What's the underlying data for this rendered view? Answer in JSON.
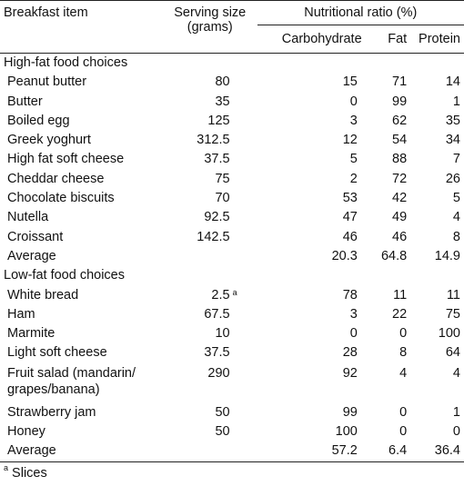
{
  "headers": {
    "item": "Breakfast item",
    "serving_line1": "Serving size",
    "serving_line2": "(grams)",
    "ratio": "Nutritional ratio (%)",
    "carb": "Carbohydrate",
    "fat": "Fat",
    "protein": "Protein"
  },
  "sections": {
    "high": "High-fat food choices",
    "low": "Low-fat food choices"
  },
  "high_rows": [
    {
      "item": "Peanut butter",
      "serving": "80",
      "carb": "15",
      "fat": "71",
      "protein": "14"
    },
    {
      "item": "Butter",
      "serving": "35",
      "carb": "0",
      "fat": "99",
      "protein": "1"
    },
    {
      "item": "Boiled egg",
      "serving": "125",
      "carb": "3",
      "fat": "62",
      "protein": "35"
    },
    {
      "item": "Greek yoghurt",
      "serving": "312.5",
      "carb": "12",
      "fat": "54",
      "protein": "34"
    },
    {
      "item": "High fat soft cheese",
      "serving": "37.5",
      "carb": "5",
      "fat": "88",
      "protein": "7"
    },
    {
      "item": "Cheddar cheese",
      "serving": "75",
      "carb": "2",
      "fat": "72",
      "protein": "26"
    },
    {
      "item": "Chocolate biscuits",
      "serving": "70",
      "carb": "53",
      "fat": "42",
      "protein": "5"
    },
    {
      "item": "Nutella",
      "serving": "92.5",
      "carb": "47",
      "fat": "49",
      "protein": "4"
    },
    {
      "item": "Croissant",
      "serving": "142.5",
      "carb": "46",
      "fat": "46",
      "protein": "8"
    }
  ],
  "high_average": {
    "item": "Average",
    "carb": "20.3",
    "fat": "64.8",
    "protein": "14.9"
  },
  "low_rows": [
    {
      "item": "White bread",
      "serving": "2.5",
      "sup": "a",
      "carb": "78",
      "fat": "11",
      "protein": "11"
    },
    {
      "item": "Ham",
      "serving": "67.5",
      "carb": "3",
      "fat": "22",
      "protein": "75"
    },
    {
      "item": "Marmite",
      "serving": "10",
      "carb": "0",
      "fat": "0",
      "protein": "100"
    },
    {
      "item": "Light soft cheese",
      "serving": "37.5",
      "carb": "28",
      "fat": "8",
      "protein": "64"
    },
    {
      "item": "Fruit salad (mandarin/ grapes/banana)",
      "serving": "290",
      "carb": "92",
      "fat": "4",
      "protein": "4"
    },
    {
      "item": "Strawberry jam",
      "serving": "50",
      "carb": "99",
      "fat": "0",
      "protein": "1"
    },
    {
      "item": "Honey",
      "serving": "50",
      "carb": "100",
      "fat": "0",
      "protein": "0"
    }
  ],
  "low_average": {
    "item": "Average",
    "carb": "57.2",
    "fat": "6.4",
    "protein": "36.4"
  },
  "footnote": {
    "mark": "a",
    "text": "Slices"
  }
}
